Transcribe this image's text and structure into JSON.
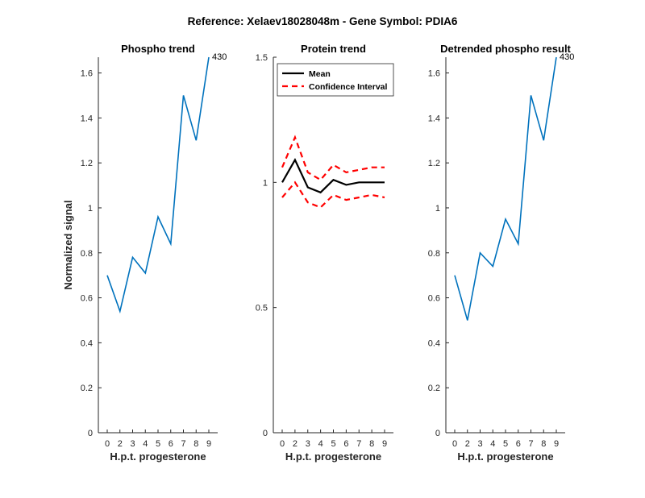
{
  "figure": {
    "suptitle": "Reference:  Xelaev18028048m - Gene Symbol:  PDIA6"
  },
  "chart_data": [
    {
      "type": "line",
      "title": "Phospho trend",
      "xlabel": "H.p.t. progesterone",
      "ylabel": "Normalized signal",
      "categories": [
        "0",
        "2",
        "3",
        "4",
        "5",
        "6",
        "7",
        "8",
        "9"
      ],
      "ylim": [
        0,
        1.67
      ],
      "yticks": [
        0,
        0.2,
        0.4,
        0.6,
        0.8,
        1,
        1.2,
        1.4,
        1.6
      ],
      "ytick_labels": [
        "0",
        "0.2",
        "0.4",
        "0.6",
        "0.8",
        "1",
        "1.2",
        "1.4",
        "1.6"
      ],
      "grid": false,
      "series": [
        {
          "values": [
            0.7,
            0.54,
            0.78,
            0.71,
            0.96,
            0.84,
            1.5,
            1.3,
            1.67
          ],
          "color": "#0072BD",
          "dashed": false
        }
      ],
      "annotation": "430"
    },
    {
      "type": "line",
      "title": "Protein trend",
      "xlabel": "H.p.t. progesterone",
      "ylabel": "",
      "categories": [
        "0",
        "2",
        "3",
        "4",
        "5",
        "6",
        "7",
        "8",
        "9"
      ],
      "ylim": [
        0,
        1.5
      ],
      "yticks": [
        0,
        0.5,
        1,
        1.5
      ],
      "ytick_labels": [
        "0",
        "0.5",
        "1",
        "1.5"
      ],
      "grid": false,
      "legend_position": "top",
      "series": [
        {
          "name": "Mean",
          "values": [
            1.0,
            1.09,
            0.98,
            0.96,
            1.01,
            0.99,
            1.0,
            1.0,
            1.0
          ],
          "color": "#000000",
          "dashed": false,
          "legend": true
        },
        {
          "name": "Confidence Interval",
          "values": [
            1.06,
            1.18,
            1.04,
            1.01,
            1.07,
            1.04,
            1.05,
            1.06,
            1.06
          ],
          "color": "#FF0000",
          "dashed": true,
          "legend": true
        },
        {
          "values": [
            0.94,
            1.0,
            0.92,
            0.9,
            0.95,
            0.93,
            0.94,
            0.95,
            0.94
          ],
          "color": "#FF0000",
          "dashed": true,
          "legend": false
        }
      ]
    },
    {
      "type": "line",
      "title": "Detrended phospho result",
      "xlabel": "H.p.t. progesterone",
      "ylabel": "",
      "categories": [
        "0",
        "2",
        "3",
        "4",
        "5",
        "6",
        "7",
        "8",
        "9"
      ],
      "ylim": [
        0,
        1.67
      ],
      "yticks": [
        0,
        0.2,
        0.4,
        0.6,
        0.8,
        1,
        1.2,
        1.4,
        1.6
      ],
      "ytick_labels": [
        "0",
        "0.2",
        "0.4",
        "0.6",
        "0.8",
        "1",
        "1.2",
        "1.4",
        "1.6"
      ],
      "grid": false,
      "series": [
        {
          "values": [
            0.7,
            0.5,
            0.8,
            0.74,
            0.95,
            0.84,
            1.5,
            1.3,
            1.67
          ],
          "color": "#0072BD",
          "dashed": false
        }
      ],
      "annotation": "430"
    }
  ]
}
